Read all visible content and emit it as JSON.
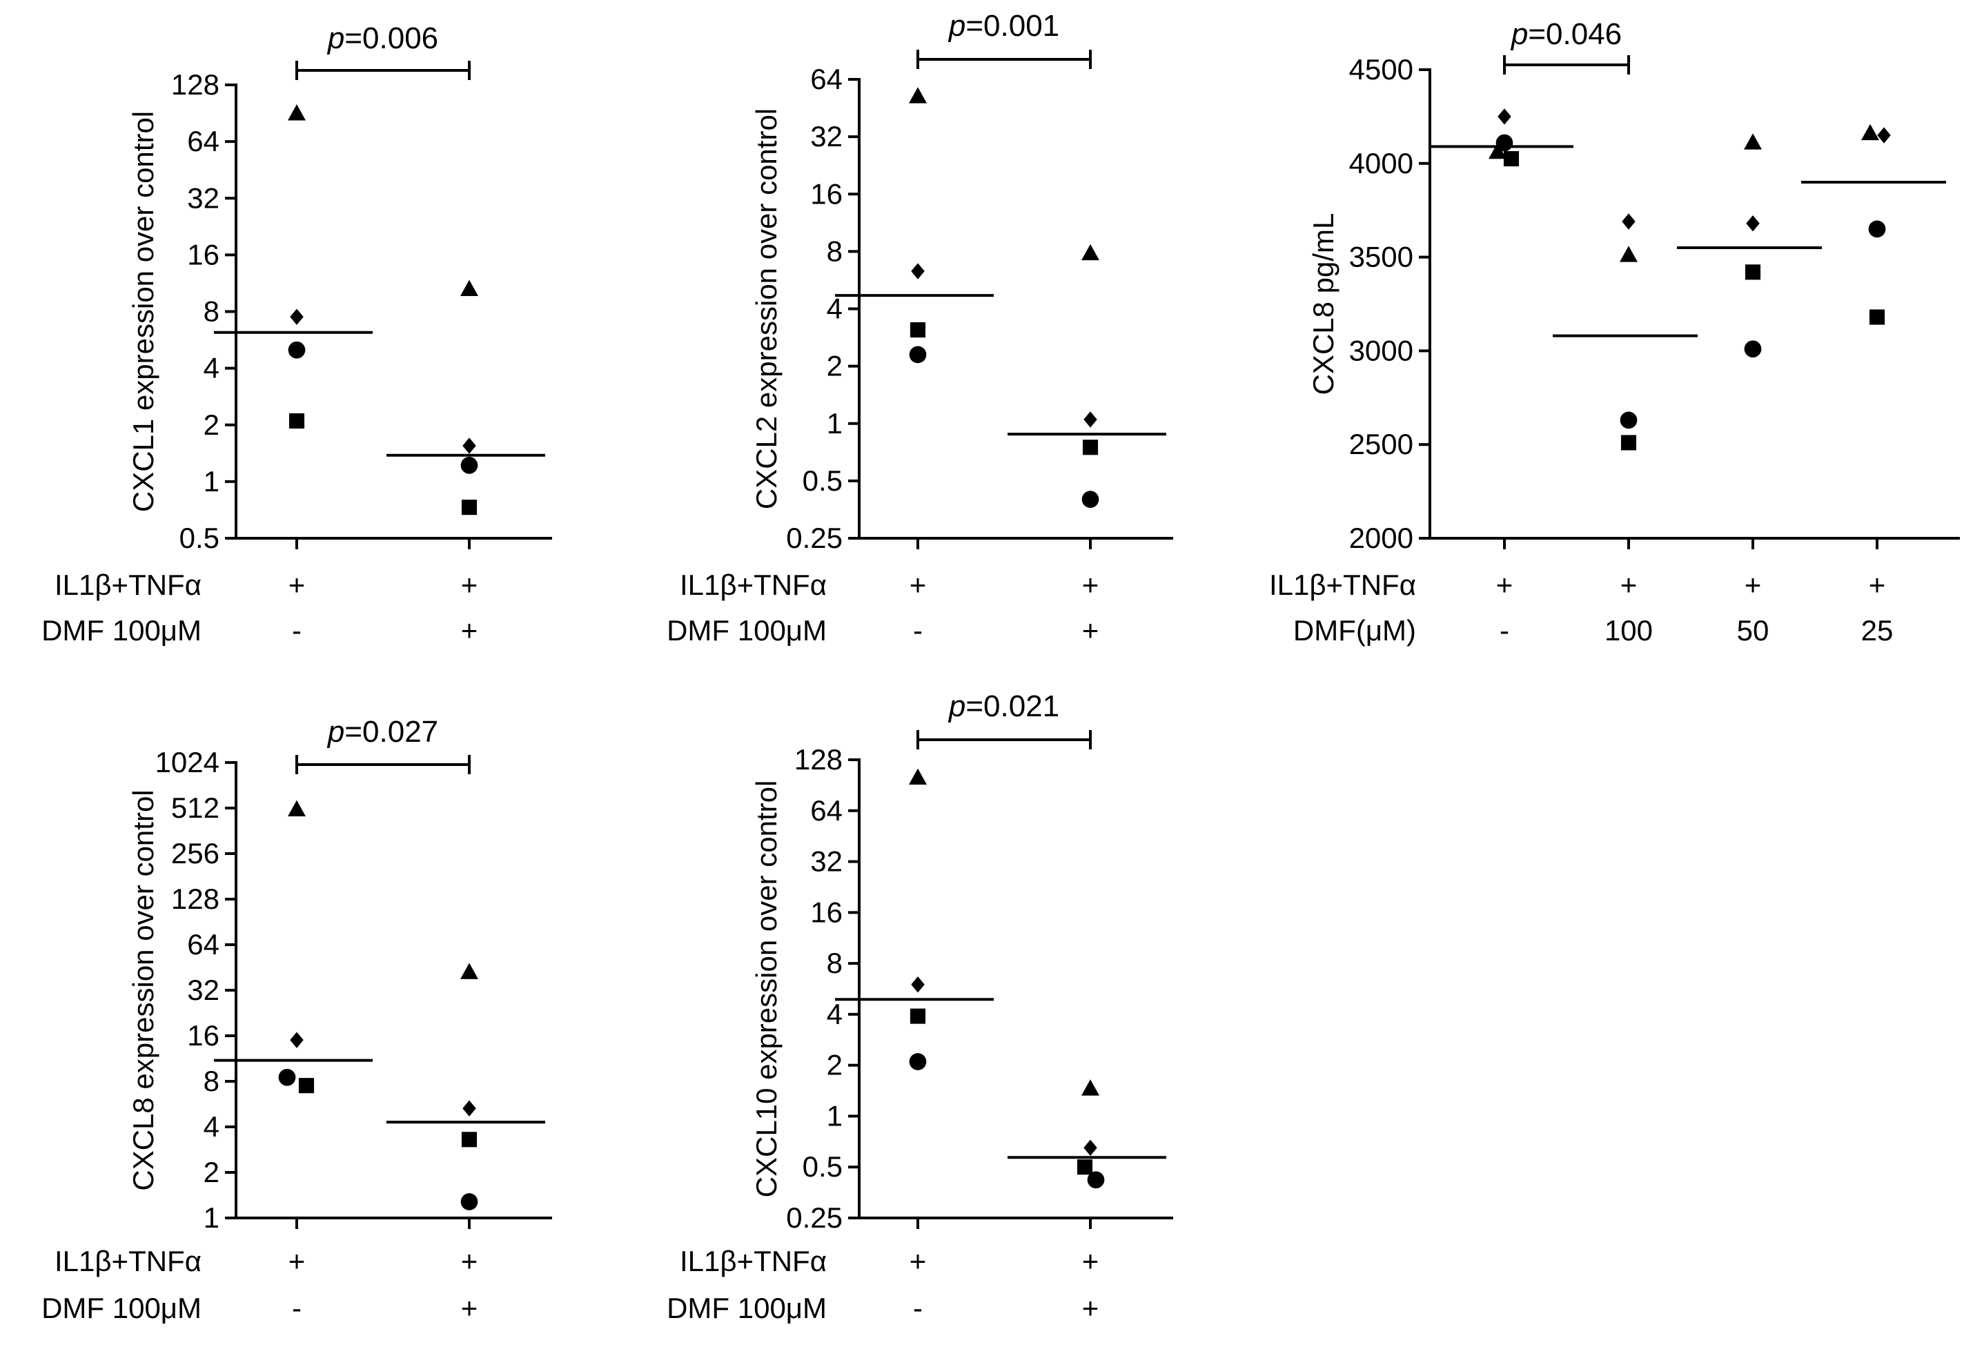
{
  "chart_data": [
    {
      "id": "cxcl1",
      "type": "scatter",
      "scale": "log2",
      "ylabel": "CXCL1 expression over control",
      "yticks": [
        0.5,
        1,
        2,
        4,
        8,
        16,
        32,
        64,
        128
      ],
      "ytick_labels": [
        "0.5",
        "1",
        "2",
        "4",
        "8",
        "16",
        "32",
        "64",
        "128"
      ],
      "ylim": [
        0.5,
        128
      ],
      "n_groups": 2,
      "groups": [
        {
          "points": [
            {
              "shape": "triangle",
              "value": 90
            },
            {
              "shape": "diamond",
              "value": 7.5
            },
            {
              "shape": "circle",
              "value": 5
            },
            {
              "shape": "square",
              "value": 2.1
            }
          ],
          "median": 6.2
        },
        {
          "points": [
            {
              "shape": "triangle",
              "value": 10.5
            },
            {
              "shape": "diamond",
              "value": 1.55
            },
            {
              "shape": "circle",
              "value": 1.22
            },
            {
              "shape": "square",
              "value": 0.73
            }
          ],
          "median": 1.38
        }
      ],
      "significance": {
        "prefix": "p",
        "text": "=0.006",
        "from": 0,
        "to": 1
      },
      "condition_rows": [
        {
          "label": "IL1β+TNFα",
          "values": [
            "+",
            "+"
          ]
        },
        {
          "label": "DMF 100μM",
          "values": [
            "-",
            "+"
          ]
        }
      ]
    },
    {
      "id": "cxcl2",
      "type": "scatter",
      "scale": "log2",
      "ylabel": "CXCL2 expression over control",
      "yticks": [
        0.25,
        0.5,
        1,
        2,
        4,
        8,
        16,
        32,
        64
      ],
      "ytick_labels": [
        "0.25",
        "0.5",
        "1",
        "2",
        "4",
        "8",
        "16",
        "32",
        "64"
      ],
      "ylim": [
        0.25,
        64
      ],
      "n_groups": 2,
      "groups": [
        {
          "points": [
            {
              "shape": "triangle",
              "value": 52
            },
            {
              "shape": "diamond",
              "value": 6.3
            },
            {
              "shape": "square",
              "value": 3.1
            },
            {
              "shape": "circle",
              "value": 2.3
            }
          ],
          "median": 4.7
        },
        {
          "points": [
            {
              "shape": "triangle",
              "value": 7.8
            },
            {
              "shape": "diamond",
              "value": 1.05
            },
            {
              "shape": "square",
              "value": 0.75
            },
            {
              "shape": "circle",
              "value": 0.4
            }
          ],
          "median": 0.88
        }
      ],
      "significance": {
        "prefix": "p",
        "text": "=0.001",
        "from": 0,
        "to": 1
      },
      "condition_rows": [
        {
          "label": "IL1β+TNFα",
          "values": [
            "+",
            "+"
          ]
        },
        {
          "label": "DMF 100μM",
          "values": [
            "-",
            "+"
          ]
        }
      ]
    },
    {
      "id": "cxcl8-protein",
      "type": "scatter",
      "scale": "linear",
      "ylabel": "CXCL8 pg/mL",
      "yticks": [
        2000,
        2500,
        3000,
        3500,
        4000,
        4500
      ],
      "ytick_labels": [
        "2000",
        "2500",
        "3000",
        "3500",
        "4000",
        "4500"
      ],
      "ylim": [
        2000,
        4500
      ],
      "n_groups": 4,
      "groups": [
        {
          "points": [
            {
              "shape": "diamond",
              "value": 4250
            },
            {
              "shape": "circle",
              "value": 4110
            },
            {
              "shape": "triangle",
              "value": 4060,
              "offset": -0.25
            },
            {
              "shape": "square",
              "value": 4025,
              "offset": 0.25
            }
          ],
          "median": 4090
        },
        {
          "points": [
            {
              "shape": "diamond",
              "value": 3690
            },
            {
              "shape": "triangle",
              "value": 3510
            },
            {
              "shape": "circle",
              "value": 2630
            },
            {
              "shape": "square",
              "value": 2510
            }
          ],
          "median": 3080
        },
        {
          "points": [
            {
              "shape": "triangle",
              "value": 4110
            },
            {
              "shape": "diamond",
              "value": 3680
            },
            {
              "shape": "square",
              "value": 3420
            },
            {
              "shape": "circle",
              "value": 3010
            }
          ],
          "median": 3550
        },
        {
          "points": [
            {
              "shape": "triangle",
              "value": 4160,
              "offset": -0.25
            },
            {
              "shape": "diamond",
              "value": 4150,
              "offset": 0.25
            },
            {
              "shape": "circle",
              "value": 3650
            },
            {
              "shape": "square",
              "value": 3180
            }
          ],
          "median": 3900
        }
      ],
      "significance": {
        "prefix": "p",
        "text": "=0.046",
        "from": 0,
        "to": 1
      },
      "condition_rows": [
        {
          "label": "IL1β+TNFα",
          "values": [
            "+",
            "+",
            "+",
            "+"
          ]
        },
        {
          "label": "DMF(μM)",
          "values": [
            "-",
            "100",
            "50",
            "25"
          ]
        }
      ]
    },
    {
      "id": "cxcl8",
      "type": "scatter",
      "scale": "log2",
      "ylabel": "CXCL8 expression over control",
      "yticks": [
        1,
        2,
        4,
        8,
        16,
        32,
        64,
        128,
        256,
        512,
        1024
      ],
      "ytick_labels": [
        "1",
        "2",
        "4",
        "8",
        "16",
        "32",
        "64",
        "128",
        "256",
        "512",
        "1024"
      ],
      "ylim": [
        1,
        1024
      ],
      "n_groups": 2,
      "groups": [
        {
          "points": [
            {
              "shape": "triangle",
              "value": 500
            },
            {
              "shape": "diamond",
              "value": 15
            },
            {
              "shape": "circle",
              "value": 8.5,
              "offset": -0.35
            },
            {
              "shape": "square",
              "value": 7.5,
              "offset": 0.35
            }
          ],
          "median": 11
        },
        {
          "points": [
            {
              "shape": "triangle",
              "value": 42
            },
            {
              "shape": "diamond",
              "value": 5.3
            },
            {
              "shape": "square",
              "value": 3.3
            },
            {
              "shape": "circle",
              "value": 1.28
            }
          ],
          "median": 4.3
        }
      ],
      "significance": {
        "prefix": "p",
        "text": "=0.027",
        "from": 0,
        "to": 1
      },
      "condition_rows": [
        {
          "label": "IL1β+TNFα",
          "values": [
            "+",
            "+"
          ]
        },
        {
          "label": "DMF 100μM",
          "values": [
            "-",
            "+"
          ]
        }
      ]
    },
    {
      "id": "cxcl10",
      "type": "scatter",
      "scale": "log2",
      "ylabel": "CXCL10 expression over control",
      "yticks": [
        0.25,
        0.5,
        1,
        2,
        4,
        8,
        16,
        32,
        64,
        128
      ],
      "ytick_labels": [
        "0.25",
        "0.5",
        "1",
        "2",
        "4",
        "8",
        "16",
        "32",
        "64",
        "128"
      ],
      "ylim": [
        0.25,
        128
      ],
      "n_groups": 2,
      "groups": [
        {
          "points": [
            {
              "shape": "triangle",
              "value": 100
            },
            {
              "shape": "diamond",
              "value": 6.0
            },
            {
              "shape": "square",
              "value": 3.9
            },
            {
              "shape": "circle",
              "value": 2.1
            }
          ],
          "median": 4.9
        },
        {
          "points": [
            {
              "shape": "triangle",
              "value": 1.45
            },
            {
              "shape": "diamond",
              "value": 0.65
            },
            {
              "shape": "square",
              "value": 0.5,
              "offset": -0.2
            },
            {
              "shape": "circle",
              "value": 0.42,
              "offset": 0.2
            }
          ],
          "median": 0.57
        }
      ],
      "significance": {
        "prefix": "p",
        "text": "=0.021",
        "from": 0,
        "to": 1
      },
      "condition_rows": [
        {
          "label": "IL1β+TNFα",
          "values": [
            "+",
            "+"
          ]
        },
        {
          "label": "DMF 100μM",
          "values": [
            "-",
            "+"
          ]
        }
      ]
    }
  ]
}
